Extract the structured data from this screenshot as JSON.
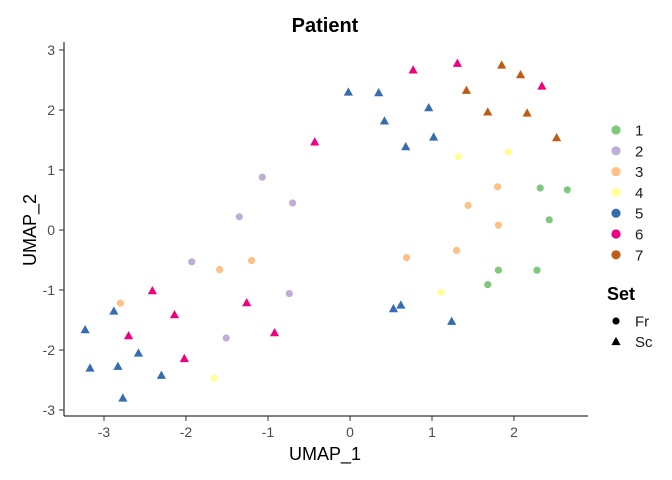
{
  "chart_data": {
    "type": "scatter",
    "title": "Patient",
    "xlabel": "UMAP_1",
    "ylabel": "UMAP_2",
    "xlim": [
      -3.4,
      2.9
    ],
    "ylim": [
      -3.1,
      3.1
    ],
    "xticks": [
      -3,
      -2,
      -1,
      0,
      1,
      2
    ],
    "yticks": [
      -3,
      -2,
      -1,
      0,
      1,
      2,
      3
    ],
    "grid": false,
    "legend_color_title": "",
    "legend_shape_title": "Set",
    "colors": {
      "1": "#7fc97f",
      "2": "#beaed4",
      "3": "#fdc086",
      "4": "#ffff99",
      "5": "#386cb0",
      "6": "#f0027f",
      "7": "#bf5b17"
    },
    "color_legend": [
      "1",
      "2",
      "3",
      "4",
      "5",
      "6",
      "7"
    ],
    "shape_legend": [
      {
        "label": "Fr",
        "shape": "circle"
      },
      {
        "label": "Sc",
        "shape": "triangle"
      }
    ],
    "points": [
      {
        "x": 2.32,
        "y": 0.7,
        "group": "1",
        "set": "Fr"
      },
      {
        "x": 2.65,
        "y": 0.67,
        "group": "1",
        "set": "Fr"
      },
      {
        "x": 2.43,
        "y": 0.17,
        "group": "1",
        "set": "Fr"
      },
      {
        "x": 1.81,
        "y": -0.67,
        "group": "1",
        "set": "Fr"
      },
      {
        "x": 2.28,
        "y": -0.67,
        "group": "1",
        "set": "Fr"
      },
      {
        "x": 1.68,
        "y": -0.91,
        "group": "1",
        "set": "Fr"
      },
      {
        "x": -1.07,
        "y": 0.88,
        "group": "2",
        "set": "Fr"
      },
      {
        "x": -0.7,
        "y": 0.45,
        "group": "2",
        "set": "Fr"
      },
      {
        "x": -1.35,
        "y": 0.22,
        "group": "2",
        "set": "Fr"
      },
      {
        "x": -1.93,
        "y": -0.53,
        "group": "2",
        "set": "Fr"
      },
      {
        "x": -0.74,
        "y": -1.06,
        "group": "2",
        "set": "Fr"
      },
      {
        "x": -1.51,
        "y": -1.8,
        "group": "2",
        "set": "Fr"
      },
      {
        "x": 1.8,
        "y": 0.72,
        "group": "3",
        "set": "Fr"
      },
      {
        "x": 1.44,
        "y": 0.41,
        "group": "3",
        "set": "Fr"
      },
      {
        "x": 1.81,
        "y": 0.08,
        "group": "3",
        "set": "Fr"
      },
      {
        "x": 1.3,
        "y": -0.34,
        "group": "3",
        "set": "Fr"
      },
      {
        "x": 0.69,
        "y": -0.46,
        "group": "3",
        "set": "Fr"
      },
      {
        "x": -1.2,
        "y": -0.51,
        "group": "3",
        "set": "Fr"
      },
      {
        "x": -1.59,
        "y": -0.66,
        "group": "3",
        "set": "Fr"
      },
      {
        "x": -2.8,
        "y": -1.22,
        "group": "3",
        "set": "Fr"
      },
      {
        "x": 1.32,
        "y": 1.22,
        "group": "4",
        "set": "Fr"
      },
      {
        "x": 1.93,
        "y": 1.3,
        "group": "4",
        "set": "Fr"
      },
      {
        "x": 1.11,
        "y": -1.04,
        "group": "4",
        "set": "Fr"
      },
      {
        "x": -1.66,
        "y": -2.47,
        "group": "4",
        "set": "Fr"
      },
      {
        "x": -0.02,
        "y": 2.3,
        "group": "5",
        "set": "Sc"
      },
      {
        "x": 0.35,
        "y": 2.29,
        "group": "5",
        "set": "Sc"
      },
      {
        "x": 0.96,
        "y": 2.04,
        "group": "5",
        "set": "Sc"
      },
      {
        "x": 0.42,
        "y": 1.82,
        "group": "5",
        "set": "Sc"
      },
      {
        "x": 1.02,
        "y": 1.55,
        "group": "5",
        "set": "Sc"
      },
      {
        "x": 0.68,
        "y": 1.39,
        "group": "5",
        "set": "Sc"
      },
      {
        "x": 0.53,
        "y": -1.31,
        "group": "5",
        "set": "Sc"
      },
      {
        "x": 0.62,
        "y": -1.25,
        "group": "5",
        "set": "Sc"
      },
      {
        "x": 1.24,
        "y": -1.52,
        "group": "5",
        "set": "Sc"
      },
      {
        "x": -3.23,
        "y": -1.66,
        "group": "5",
        "set": "Sc"
      },
      {
        "x": -2.88,
        "y": -1.35,
        "group": "5",
        "set": "Sc"
      },
      {
        "x": -2.58,
        "y": -2.05,
        "group": "5",
        "set": "Sc"
      },
      {
        "x": -3.17,
        "y": -2.3,
        "group": "5",
        "set": "Sc"
      },
      {
        "x": -2.83,
        "y": -2.27,
        "group": "5",
        "set": "Sc"
      },
      {
        "x": -2.3,
        "y": -2.42,
        "group": "5",
        "set": "Sc"
      },
      {
        "x": -2.77,
        "y": -2.8,
        "group": "5",
        "set": "Sc"
      },
      {
        "x": 0.77,
        "y": 2.67,
        "group": "6",
        "set": "Sc"
      },
      {
        "x": 1.31,
        "y": 2.78,
        "group": "6",
        "set": "Sc"
      },
      {
        "x": 2.34,
        "y": 2.4,
        "group": "6",
        "set": "Sc"
      },
      {
        "x": -0.43,
        "y": 1.47,
        "group": "6",
        "set": "Sc"
      },
      {
        "x": -2.41,
        "y": -1.01,
        "group": "6",
        "set": "Sc"
      },
      {
        "x": -2.14,
        "y": -1.41,
        "group": "6",
        "set": "Sc"
      },
      {
        "x": -1.26,
        "y": -1.21,
        "group": "6",
        "set": "Sc"
      },
      {
        "x": -0.92,
        "y": -1.71,
        "group": "6",
        "set": "Sc"
      },
      {
        "x": -2.7,
        "y": -1.76,
        "group": "6",
        "set": "Sc"
      },
      {
        "x": -2.02,
        "y": -2.14,
        "group": "6",
        "set": "Sc"
      },
      {
        "x": 1.85,
        "y": 2.75,
        "group": "7",
        "set": "Sc"
      },
      {
        "x": 2.08,
        "y": 2.59,
        "group": "7",
        "set": "Sc"
      },
      {
        "x": 1.42,
        "y": 2.33,
        "group": "7",
        "set": "Sc"
      },
      {
        "x": 1.68,
        "y": 1.97,
        "group": "7",
        "set": "Sc"
      },
      {
        "x": 2.16,
        "y": 1.95,
        "group": "7",
        "set": "Sc"
      },
      {
        "x": 2.52,
        "y": 1.54,
        "group": "7",
        "set": "Sc"
      }
    ]
  }
}
